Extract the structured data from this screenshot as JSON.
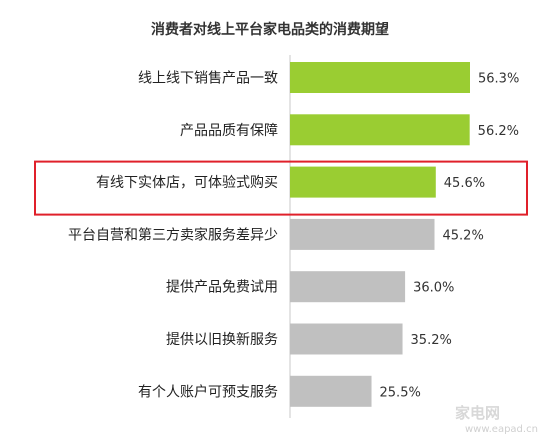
{
  "chart_data": {
    "type": "bar",
    "orientation": "horizontal",
    "title": "消费者对线上平台家电品类的消费期望",
    "categories": [
      "线上线下销售产品一致",
      "产品品质有保障",
      "有线下实体店，可体验式购买",
      "平台自营和第三方卖家服务差异少",
      "提供产品免费试用",
      "提供以旧换新服务",
      "有个人账户可预支服务"
    ],
    "values": [
      56.3,
      56.2,
      45.6,
      45.2,
      36.0,
      35.2,
      25.5
    ],
    "value_labels": [
      "56.3%",
      "56.2%",
      "45.6%",
      "45.2%",
      "36.0%",
      "35.2%",
      "25.5%"
    ],
    "xlim": [
      0,
      70
    ],
    "highlighted_index": 2,
    "bar_colors": [
      "#9acd32",
      "#9acd32",
      "#9acd32",
      "#c0c0c0",
      "#c0c0c0",
      "#c0c0c0",
      "#c0c0c0"
    ],
    "highlight_box_color": "#e0202a",
    "axis_color": "#c8c8c8",
    "grid": false,
    "legend": "none"
  },
  "watermark": {
    "brand": "家电网",
    "url": "www.eapad.cn"
  }
}
